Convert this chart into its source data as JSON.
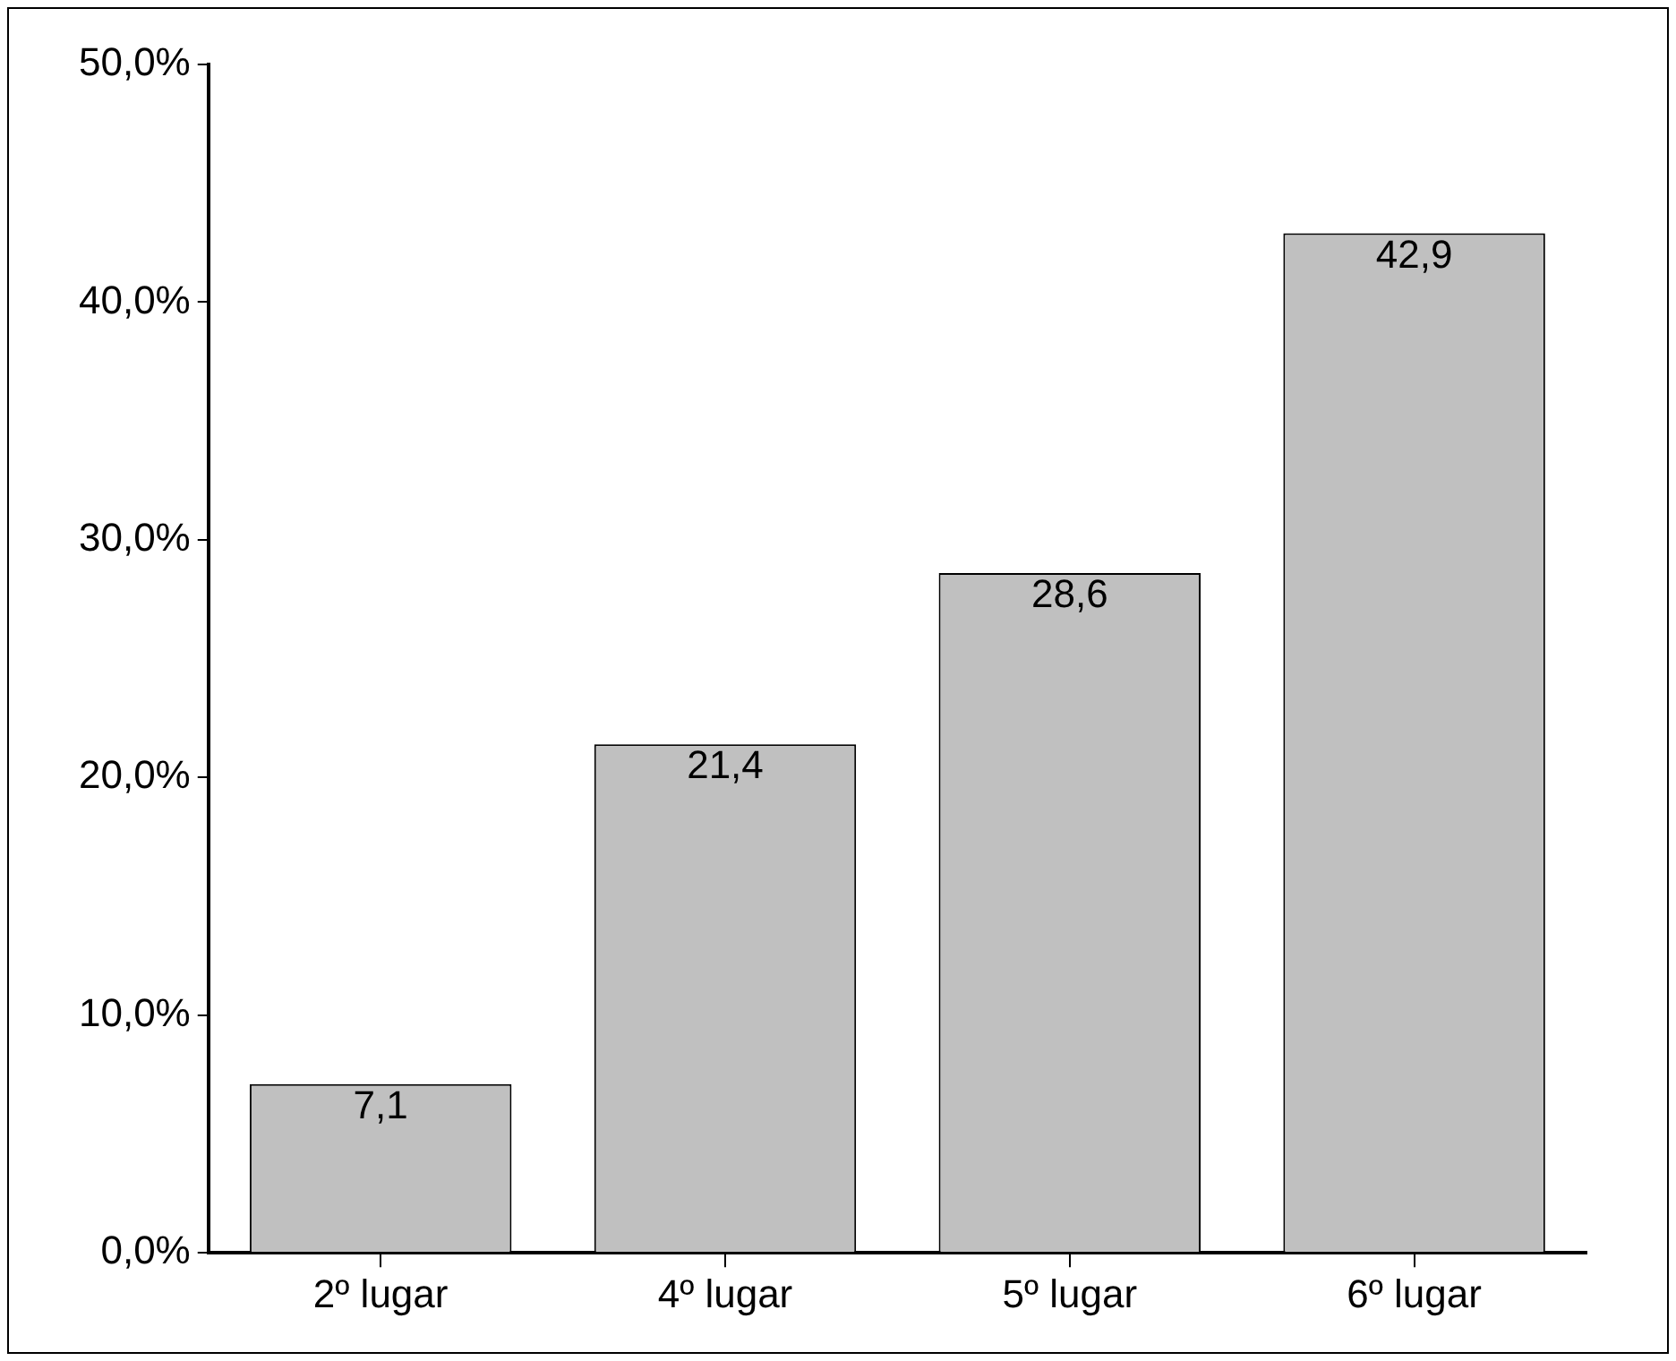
{
  "chart_data": {
    "type": "bar",
    "categories": [
      "2º lugar",
      "4º lugar",
      "5º lugar",
      "6º lugar"
    ],
    "values": [
      7.1,
      21.4,
      28.6,
      42.9
    ],
    "color": "#c0c0c0",
    "value_labels": [
      "7,1",
      "21,4",
      "28,6",
      "42,9"
    ],
    "ylim": [
      0,
      50
    ],
    "yticks": [
      {
        "value": 0,
        "label": "0,0%"
      },
      {
        "value": 10,
        "label": "10,0%"
      },
      {
        "value": 20,
        "label": "20,0%"
      },
      {
        "value": 30,
        "label": "30,0%"
      },
      {
        "value": 40,
        "label": "40,0%"
      },
      {
        "value": 50,
        "label": "50,0%"
      }
    ],
    "grid": false,
    "legend": false
  }
}
